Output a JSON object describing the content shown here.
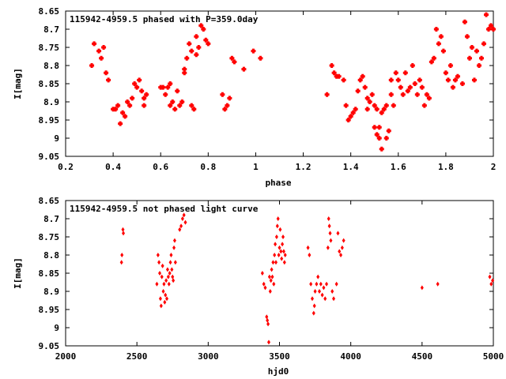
{
  "chart_data": [
    {
      "type": "scatter",
      "title": "115942-4959.5 phased with P=359.0day",
      "xlabel": "phase",
      "ylabel": "I[mag]",
      "xlim": [
        0.2,
        2.0
      ],
      "ylim": [
        8.65,
        9.05
      ],
      "y_inverted": true,
      "x_ticks": [
        "0.2",
        "0.4",
        "0.6",
        "0.8",
        "1",
        "1.2",
        "1.4",
        "1.6",
        "1.8",
        "2"
      ],
      "y_ticks": [
        "8.65",
        "8.7",
        "8.75",
        "8.8",
        "8.85",
        "8.9",
        "8.95",
        "9",
        "9.05"
      ],
      "grid": false,
      "marker": "cross",
      "color": "#ff0000",
      "points": [
        [
          0.31,
          8.8
        ],
        [
          0.32,
          8.74
        ],
        [
          0.34,
          8.76
        ],
        [
          0.35,
          8.78
        ],
        [
          0.36,
          8.75
        ],
        [
          0.37,
          8.82
        ],
        [
          0.38,
          8.84
        ],
        [
          0.4,
          8.92
        ],
        [
          0.41,
          8.92
        ],
        [
          0.42,
          8.91
        ],
        [
          0.43,
          8.96
        ],
        [
          0.44,
          8.93
        ],
        [
          0.45,
          8.94
        ],
        [
          0.46,
          8.9
        ],
        [
          0.47,
          8.91
        ],
        [
          0.48,
          8.89
        ],
        [
          0.49,
          8.85
        ],
        [
          0.5,
          8.86
        ],
        [
          0.51,
          8.84
        ],
        [
          0.52,
          8.87
        ],
        [
          0.53,
          8.89
        ],
        [
          0.53,
          8.91
        ],
        [
          0.54,
          8.88
        ],
        [
          0.6,
          8.86
        ],
        [
          0.61,
          8.86
        ],
        [
          0.62,
          8.88
        ],
        [
          0.63,
          8.86
        ],
        [
          0.64,
          8.85
        ],
        [
          0.64,
          8.91
        ],
        [
          0.65,
          8.9
        ],
        [
          0.66,
          8.92
        ],
        [
          0.67,
          8.87
        ],
        [
          0.68,
          8.91
        ],
        [
          0.69,
          8.9
        ],
        [
          0.7,
          8.82
        ],
        [
          0.7,
          8.81
        ],
        [
          0.71,
          8.78
        ],
        [
          0.72,
          8.74
        ],
        [
          0.73,
          8.76
        ],
        [
          0.73,
          8.91
        ],
        [
          0.74,
          8.92
        ],
        [
          0.75,
          8.77
        ],
        [
          0.75,
          8.72
        ],
        [
          0.76,
          8.75
        ],
        [
          0.77,
          8.69
        ],
        [
          0.78,
          8.7
        ],
        [
          0.79,
          8.73
        ],
        [
          0.8,
          8.74
        ],
        [
          0.86,
          8.88
        ],
        [
          0.87,
          8.92
        ],
        [
          0.88,
          8.91
        ],
        [
          0.89,
          8.89
        ],
        [
          0.9,
          8.78
        ],
        [
          0.91,
          8.79
        ],
        [
          0.95,
          8.81
        ],
        [
          0.99,
          8.76
        ],
        [
          1.02,
          8.78
        ],
        [
          1.3,
          8.88
        ],
        [
          1.32,
          8.8
        ],
        [
          1.33,
          8.82
        ],
        [
          1.34,
          8.83
        ],
        [
          1.35,
          8.83
        ],
        [
          1.37,
          8.84
        ],
        [
          1.38,
          8.91
        ],
        [
          1.39,
          8.95
        ],
        [
          1.4,
          8.94
        ],
        [
          1.41,
          8.93
        ],
        [
          1.42,
          8.92
        ],
        [
          1.43,
          8.87
        ],
        [
          1.44,
          8.84
        ],
        [
          1.45,
          8.83
        ],
        [
          1.46,
          8.86
        ],
        [
          1.47,
          8.92
        ],
        [
          1.47,
          8.89
        ],
        [
          1.48,
          8.9
        ],
        [
          1.49,
          8.88
        ],
        [
          1.5,
          8.97
        ],
        [
          1.5,
          8.91
        ],
        [
          1.51,
          8.92
        ],
        [
          1.51,
          8.99
        ],
        [
          1.52,
          8.97
        ],
        [
          1.52,
          9.0
        ],
        [
          1.53,
          9.03
        ],
        [
          1.53,
          8.93
        ],
        [
          1.54,
          8.92
        ],
        [
          1.55,
          8.91
        ],
        [
          1.55,
          9.0
        ],
        [
          1.56,
          8.98
        ],
        [
          1.57,
          8.88
        ],
        [
          1.57,
          8.84
        ],
        [
          1.58,
          8.91
        ],
        [
          1.59,
          8.82
        ],
        [
          1.6,
          8.84
        ],
        [
          1.61,
          8.86
        ],
        [
          1.62,
          8.88
        ],
        [
          1.63,
          8.82
        ],
        [
          1.64,
          8.87
        ],
        [
          1.65,
          8.86
        ],
        [
          1.66,
          8.8
        ],
        [
          1.67,
          8.85
        ],
        [
          1.68,
          8.88
        ],
        [
          1.69,
          8.84
        ],
        [
          1.7,
          8.86
        ],
        [
          1.71,
          8.91
        ],
        [
          1.72,
          8.88
        ],
        [
          1.73,
          8.89
        ],
        [
          1.74,
          8.79
        ],
        [
          1.75,
          8.78
        ],
        [
          1.76,
          8.7
        ],
        [
          1.77,
          8.74
        ],
        [
          1.78,
          8.72
        ],
        [
          1.79,
          8.76
        ],
        [
          1.8,
          8.82
        ],
        [
          1.81,
          8.84
        ],
        [
          1.82,
          8.8
        ],
        [
          1.83,
          8.86
        ],
        [
          1.84,
          8.84
        ],
        [
          1.85,
          8.83
        ],
        [
          1.87,
          8.85
        ],
        [
          1.88,
          8.68
        ],
        [
          1.89,
          8.72
        ],
        [
          1.9,
          8.78
        ],
        [
          1.91,
          8.75
        ],
        [
          1.92,
          8.84
        ],
        [
          1.93,
          8.76
        ],
        [
          1.94,
          8.8
        ],
        [
          1.95,
          8.78
        ],
        [
          1.96,
          8.74
        ],
        [
          1.97,
          8.66
        ],
        [
          1.98,
          8.7
        ],
        [
          1.99,
          8.69
        ],
        [
          2.0,
          8.7
        ]
      ]
    },
    {
      "type": "scatter",
      "title": "115942-4959.5 not phased light curve",
      "xlabel": "hjd0",
      "ylabel": "I[mag]",
      "xlim": [
        2000,
        5000
      ],
      "ylim": [
        8.65,
        9.05
      ],
      "y_inverted": true,
      "x_ticks": [
        "2000",
        "2500",
        "3000",
        "3500",
        "4000",
        "4500",
        "5000"
      ],
      "y_ticks": [
        "8.65",
        "8.7",
        "8.75",
        "8.8",
        "8.85",
        "8.9",
        "8.95",
        "9",
        "9.05"
      ],
      "grid": false,
      "marker": "diamond",
      "color": "#ff0000",
      "points": [
        [
          2392,
          8.82
        ],
        [
          2395,
          8.8
        ],
        [
          2402,
          8.73
        ],
        [
          2405,
          8.74
        ],
        [
          2640,
          8.88
        ],
        [
          2648,
          8.8
        ],
        [
          2655,
          8.82
        ],
        [
          2660,
          8.85
        ],
        [
          2665,
          8.92
        ],
        [
          2670,
          8.94
        ],
        [
          2675,
          8.86
        ],
        [
          2680,
          8.83
        ],
        [
          2685,
          8.9
        ],
        [
          2690,
          8.88
        ],
        [
          2695,
          8.93
        ],
        [
          2700,
          8.91
        ],
        [
          2705,
          8.87
        ],
        [
          2710,
          8.92
        ],
        [
          2715,
          8.84
        ],
        [
          2720,
          8.86
        ],
        [
          2725,
          8.88
        ],
        [
          2730,
          8.85
        ],
        [
          2735,
          8.82
        ],
        [
          2740,
          8.8
        ],
        [
          2745,
          8.84
        ],
        [
          2750,
          8.86
        ],
        [
          2755,
          8.87
        ],
        [
          2760,
          8.78
        ],
        [
          2765,
          8.76
        ],
        [
          2770,
          8.82
        ],
        [
          2800,
          8.73
        ],
        [
          2810,
          8.72
        ],
        [
          2820,
          8.7
        ],
        [
          2830,
          8.69
        ],
        [
          2840,
          8.71
        ],
        [
          3380,
          8.85
        ],
        [
          3390,
          8.88
        ],
        [
          3400,
          8.89
        ],
        [
          3410,
          8.97
        ],
        [
          3415,
          8.98
        ],
        [
          3420,
          8.99
        ],
        [
          3425,
          9.04
        ],
        [
          3430,
          8.86
        ],
        [
          3435,
          8.9
        ],
        [
          3440,
          8.87
        ],
        [
          3445,
          8.84
        ],
        [
          3450,
          8.86
        ],
        [
          3455,
          8.82
        ],
        [
          3460,
          8.88
        ],
        [
          3465,
          8.8
        ],
        [
          3470,
          8.77
        ],
        [
          3475,
          8.82
        ],
        [
          3480,
          8.75
        ],
        [
          3485,
          8.72
        ],
        [
          3490,
          8.7
        ],
        [
          3495,
          8.8
        ],
        [
          3500,
          8.78
        ],
        [
          3505,
          8.73
        ],
        [
          3510,
          8.79
        ],
        [
          3515,
          8.81
        ],
        [
          3520,
          8.77
        ],
        [
          3525,
          8.75
        ],
        [
          3530,
          8.79
        ],
        [
          3535,
          8.82
        ],
        [
          3540,
          8.8
        ],
        [
          3700,
          8.78
        ],
        [
          3710,
          8.8
        ],
        [
          3720,
          8.88
        ],
        [
          3730,
          8.92
        ],
        [
          3740,
          8.96
        ],
        [
          3745,
          8.94
        ],
        [
          3750,
          8.9
        ],
        [
          3760,
          8.88
        ],
        [
          3770,
          8.86
        ],
        [
          3780,
          8.9
        ],
        [
          3790,
          8.88
        ],
        [
          3800,
          8.91
        ],
        [
          3810,
          8.89
        ],
        [
          3820,
          8.92
        ],
        [
          3830,
          8.88
        ],
        [
          3840,
          8.78
        ],
        [
          3845,
          8.7
        ],
        [
          3850,
          8.72
        ],
        [
          3855,
          8.74
        ],
        [
          3860,
          8.76
        ],
        [
          3870,
          8.9
        ],
        [
          3880,
          8.92
        ],
        [
          3900,
          8.88
        ],
        [
          3910,
          8.74
        ],
        [
          3920,
          8.79
        ],
        [
          3930,
          8.8
        ],
        [
          3940,
          8.78
        ],
        [
          3950,
          8.76
        ],
        [
          4500,
          8.89
        ],
        [
          4610,
          8.88
        ],
        [
          4975,
          8.86
        ],
        [
          4985,
          8.88
        ],
        [
          4995,
          8.87
        ]
      ]
    }
  ]
}
